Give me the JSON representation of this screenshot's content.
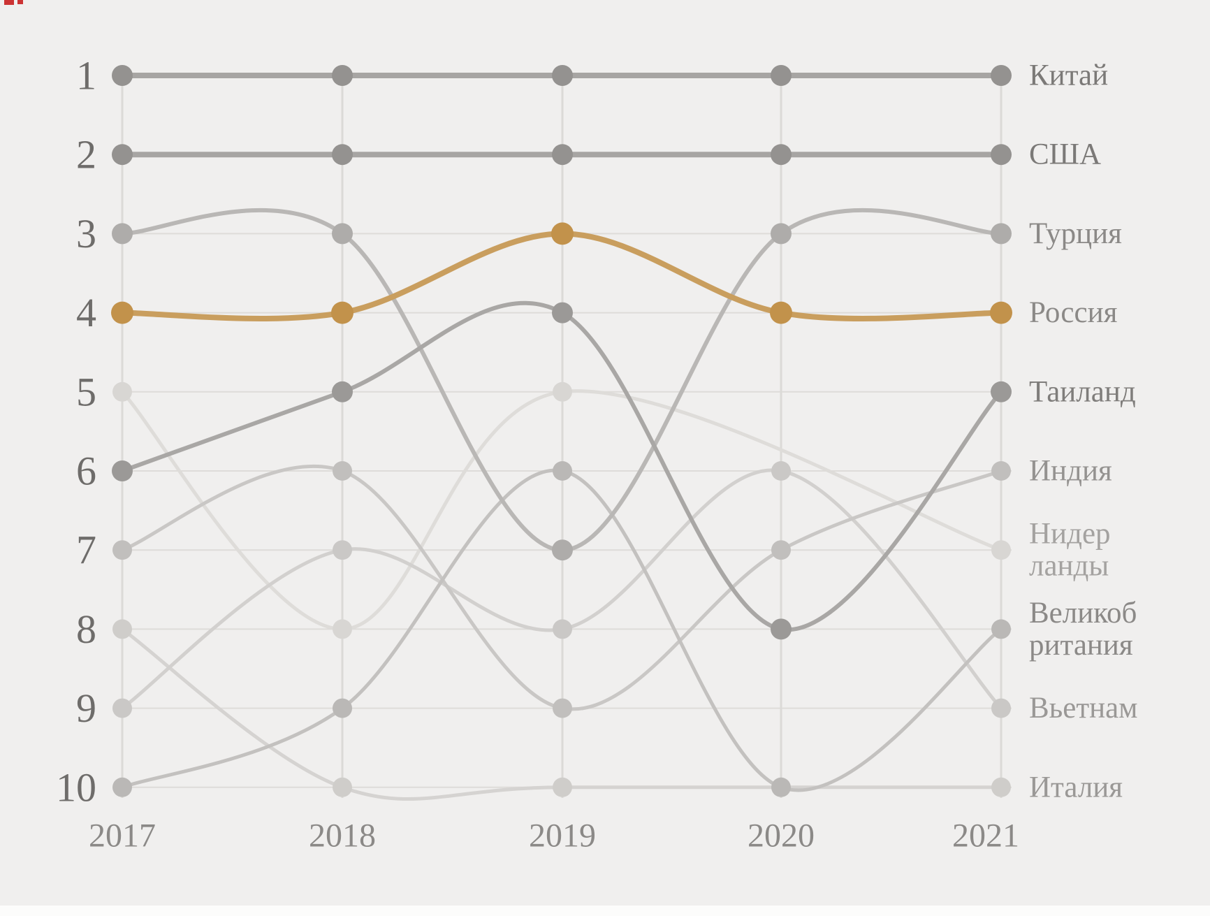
{
  "page": {
    "background": "#f0efee",
    "footer_band_color": "#fcfcfb",
    "artifact_color": "#cc3333"
  },
  "chart_data": {
    "type": "line",
    "subtype": "bump-rank-chart",
    "title": "",
    "x_labels": [
      "2017",
      "2018",
      "2019",
      "2020",
      "2021"
    ],
    "rank_labels": [
      "1",
      "2",
      "3",
      "4",
      "5",
      "6",
      "7",
      "8",
      "9",
      "10"
    ],
    "ylim": [
      1,
      10
    ],
    "grid": {
      "h_color": "#dedcd9",
      "v_color": "#dbdad7",
      "gridlines": true
    },
    "legend_position": "right-inline-labels",
    "highlight_series": "Россия",
    "rank_axis_color": "#6e6c6a",
    "year_axis_color": "#8b8987",
    "series": [
      {
        "name": "Китай",
        "label_lines": [
          "Китай"
        ],
        "ranks": [
          1,
          1,
          1,
          1,
          1
        ],
        "line_color": "#a7a5a3",
        "dot_color": "#949290",
        "label_color": "#7b7977",
        "line_width": 8,
        "dot_r": 15
      },
      {
        "name": "США",
        "label_lines": [
          "США"
        ],
        "ranks": [
          2,
          2,
          2,
          2,
          2
        ],
        "line_color": "#a7a5a3",
        "dot_color": "#949290",
        "label_color": "#7b7977",
        "line_width": 8,
        "dot_r": 15
      },
      {
        "name": "Турция",
        "label_lines": [
          "Турция"
        ],
        "ranks": [
          3,
          3,
          7,
          3,
          3
        ],
        "line_color": "#b9b7b5",
        "dot_color": "#aeacaa",
        "label_color": "#8b8987",
        "line_width": 6,
        "dot_r": 15
      },
      {
        "name": "Россия",
        "label_lines": [
          "Россия"
        ],
        "ranks": [
          4,
          4,
          3,
          4,
          4
        ],
        "line_color": "#c99e5e",
        "dot_color": "#c2924b",
        "label_color": "#8b8987",
        "line_width": 8,
        "dot_r": 16
      },
      {
        "name": "Таиланд",
        "label_lines": [
          "Таиланд"
        ],
        "ranks": [
          6,
          5,
          4,
          8,
          5
        ],
        "line_color": "#a9a7a5",
        "dot_color": "#9b9997",
        "label_color": "#7f7d7b",
        "line_width": 6,
        "dot_r": 15
      },
      {
        "name": "Индия",
        "label_lines": [
          "Индия"
        ],
        "ranks": [
          7,
          6,
          9,
          7,
          6
        ],
        "line_color": "#c9c7c5",
        "dot_color": "#c1bfbd",
        "label_color": "#949290",
        "line_width": 5,
        "dot_r": 14
      },
      {
        "name": "Нидерланды",
        "label_lines": [
          "Нидер",
          "ланды"
        ],
        "ranks": [
          5,
          8,
          5,
          null,
          7
        ],
        "line_color": "#dedcd9",
        "dot_color": "#d8d6d3",
        "label_color": "#a4a2a0",
        "line_width": 5,
        "dot_r": 14
      },
      {
        "name": "Великобритания",
        "label_lines": [
          "Великоб",
          "ритания"
        ],
        "ranks": [
          10,
          9,
          6,
          10,
          8
        ],
        "line_color": "#c3c1bf",
        "dot_color": "#bab8b6",
        "label_color": "#8b8987",
        "line_width": 5,
        "dot_r": 14
      },
      {
        "name": "Вьетнам",
        "label_lines": [
          "Вьетнам"
        ],
        "ranks": [
          9,
          7,
          8,
          6,
          9
        ],
        "line_color": "#d2d0ce",
        "dot_color": "#cac8c6",
        "label_color": "#9a9896",
        "line_width": 5,
        "dot_r": 14
      },
      {
        "name": "Италия",
        "label_lines": [
          "Италия"
        ],
        "ranks": [
          8,
          10,
          10,
          null,
          10
        ],
        "line_color": "#d5d3d1",
        "dot_color": "#cfcdca",
        "label_color": "#9a9896",
        "line_width": 5,
        "dot_r": 14
      }
    ]
  }
}
